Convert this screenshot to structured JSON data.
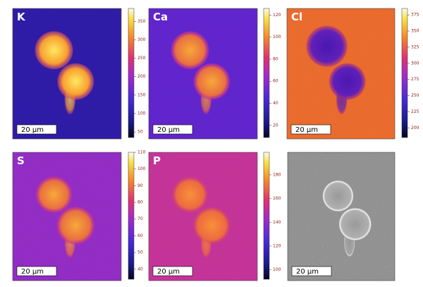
{
  "panels": [
    {
      "label": "K",
      "scale_bar": "20 µm",
      "colorbar": {
        "lim": [
          35,
          385
        ],
        "ticks": [
          50,
          100,
          150,
          200,
          250,
          300,
          350
        ]
      }
    },
    {
      "label": "Ca",
      "scale_bar": "20 µm",
      "colorbar": {
        "lim": [
          9,
          126
        ],
        "ticks": [
          20,
          40,
          60,
          80,
          100,
          120
        ]
      }
    },
    {
      "label": "Cl",
      "scale_bar": "20 µm",
      "colorbar": {
        "lim": [
          185,
          385
        ],
        "ticks": [
          200,
          225,
          250,
          275,
          300,
          325,
          350,
          375
        ]
      }
    },
    {
      "label": "S",
      "scale_bar": "20 µm",
      "colorbar": {
        "lim": [
          34,
          110
        ],
        "ticks": [
          40,
          50,
          60,
          70,
          80,
          90,
          100,
          110
        ]
      }
    },
    {
      "label": "P",
      "scale_bar": "20 µm",
      "colorbar": {
        "lim": [
          92,
          199
        ],
        "ticks": [
          100,
          120,
          140,
          160,
          180
        ]
      }
    },
    {
      "scale_bar": "20 µm"
    }
  ]
}
